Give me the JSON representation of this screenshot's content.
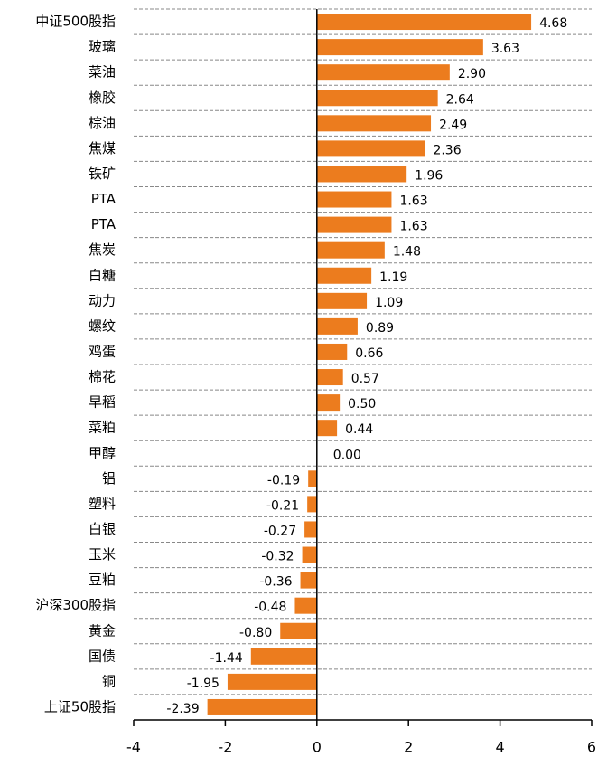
{
  "chart_data": {
    "type": "barh",
    "categories": [
      "中证500股指",
      "玻璃",
      "菜油",
      "橡胶",
      "棕油",
      "焦煤",
      "铁矿",
      "PTA",
      "PTA",
      "焦炭",
      "白糖",
      "动力",
      "螺纹",
      "鸡蛋",
      "棉花",
      "早稻",
      "菜粕",
      "甲醇",
      "铝",
      "塑料",
      "白银",
      "玉米",
      "豆粕",
      "沪深300股指",
      "黄金",
      "国债",
      "铜",
      "上证50股指"
    ],
    "values": [
      4.68,
      3.63,
      2.9,
      2.64,
      2.49,
      2.36,
      1.96,
      1.63,
      1.63,
      1.48,
      1.19,
      1.09,
      0.89,
      0.66,
      0.57,
      0.5,
      0.44,
      0,
      -0.19,
      -0.21,
      -0.27,
      -0.32,
      -0.36,
      -0.48,
      -0.8,
      -1.44,
      -1.95,
      -2.39
    ],
    "value_labels": [
      "4.68",
      "3.63",
      "2.90",
      "2.64",
      "2.49",
      "2.36",
      "1.96",
      "1.63",
      "1.63",
      "1.48",
      "1.19",
      "1.09",
      "0.89",
      "0.66",
      "0.57",
      "0.50",
      "0.44",
      "0.00",
      "-0.19",
      "-0.21",
      "-0.27",
      "-0.32",
      "-0.36",
      "-0.48",
      "-0.80",
      "-1.44",
      "-1.95",
      "-2.39"
    ],
    "color": "#ec7c1e",
    "xlim": [
      -4,
      6
    ],
    "xticks": [
      -4,
      -2,
      0,
      2,
      4,
      6
    ],
    "grid": true
  }
}
